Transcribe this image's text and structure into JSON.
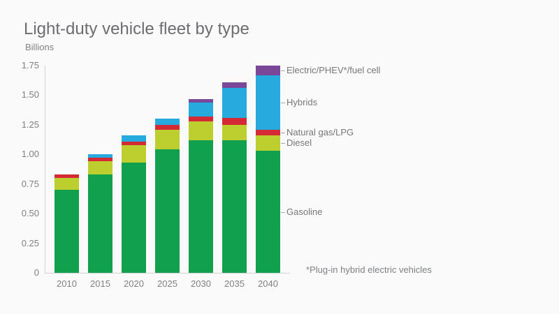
{
  "title": "Light-duty vehicle fleet by type",
  "subtitle": "Billions",
  "footnote": "*Plug-in hybrid electric vehicles",
  "colors": {
    "gasoline": "#11a04d",
    "diesel": "#bccf2f",
    "natural_gas_lpg": "#d42a36",
    "hybrids": "#27aade",
    "electric_phev_fuel_cell": "#7b4899",
    "title_text": "#6b6d70",
    "axis_text": "#7e8184",
    "axis_line": "#d2d3d5",
    "background": "#fafafa"
  },
  "chart_data": {
    "type": "bar",
    "stacked": true,
    "title": "Light-duty vehicle fleet by type",
    "ylabel": "Billions",
    "xlabel": "",
    "ylim": [
      0,
      1.75
    ],
    "yticks": [
      0,
      0.25,
      0.5,
      0.75,
      1,
      1.25,
      1.5,
      1.75
    ],
    "grid": false,
    "legend_position": "right-of-last-bar-with-leader-lines",
    "categories": [
      "2010",
      "2015",
      "2020",
      "2025",
      "2030",
      "2035",
      "2040"
    ],
    "series": [
      {
        "name": "Gasoline",
        "color": "#11a04d",
        "values": [
          0.7,
          0.83,
          0.93,
          1.04,
          1.12,
          1.12,
          1.03
        ]
      },
      {
        "name": "Diesel",
        "color": "#bccf2f",
        "values": [
          0.1,
          0.11,
          0.15,
          0.17,
          0.16,
          0.13,
          0.13
        ]
      },
      {
        "name": "Natural gas/LPG",
        "color": "#d42a36",
        "values": [
          0.03,
          0.03,
          0.03,
          0.04,
          0.04,
          0.06,
          0.05
        ]
      },
      {
        "name": "Hybrids",
        "color": "#27aade",
        "values": [
          0.0,
          0.03,
          0.05,
          0.05,
          0.12,
          0.25,
          0.46
        ]
      },
      {
        "name": "Electric/PHEV*/fuel cell",
        "color": "#7b4899",
        "values": [
          0.0,
          0.0,
          0.0,
          0.0,
          0.03,
          0.05,
          0.08
        ]
      }
    ],
    "totals": [
      0.83,
      1.0,
      1.16,
      1.3,
      1.47,
      1.61,
      1.75
    ]
  }
}
